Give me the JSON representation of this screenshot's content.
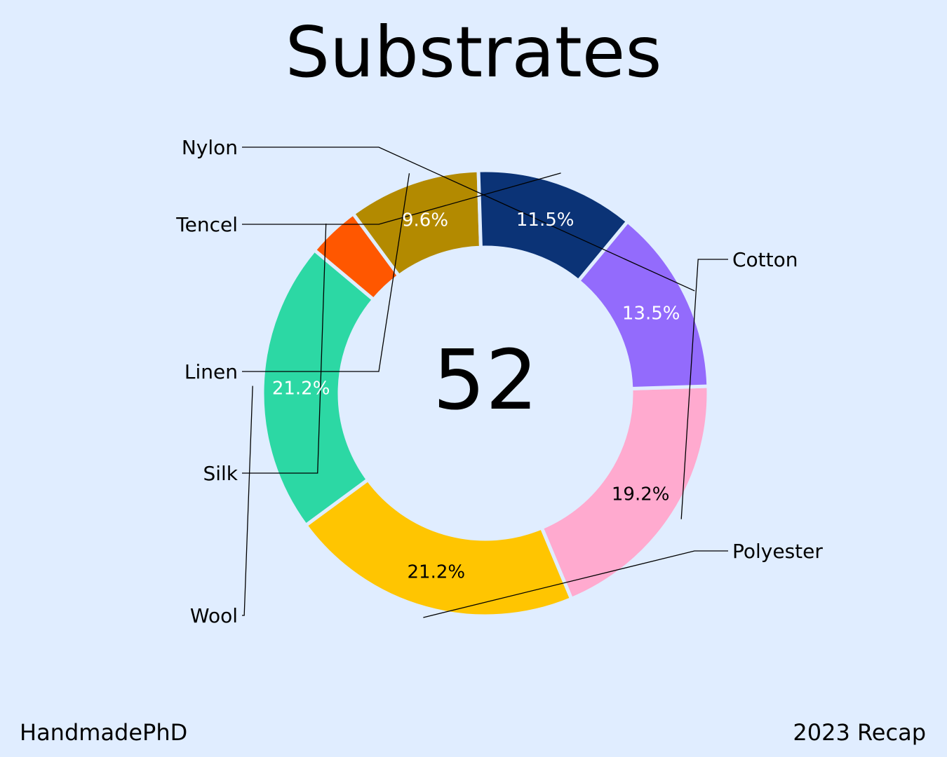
{
  "chart_data": {
    "type": "pie",
    "title": "Substrates",
    "center_label": "52",
    "categories": [
      "Cotton",
      "Polyester",
      "Wool",
      "Silk",
      "Linen",
      "Tencel",
      "Nylon"
    ],
    "values": [
      19.2,
      21.2,
      21.2,
      3.8,
      9.6,
      11.5,
      13.5
    ],
    "value_labels": [
      "19.2%",
      "21.2%",
      "21.2%",
      "",
      "9.6%",
      "11.5%",
      "13.5%"
    ],
    "colors": [
      "#ffaacf",
      "#ffc501",
      "#2cd8a4",
      "#ff5700",
      "#b38a00",
      "#0b3376",
      "#936bfc"
    ],
    "label_colors": [
      "#000000",
      "#000000",
      "#ffffff",
      "#ffffff",
      "#ffffff",
      "#ffffff",
      "#ffffff"
    ]
  },
  "footer": {
    "left": "HandmadePhD",
    "right": "2023 Recap"
  }
}
